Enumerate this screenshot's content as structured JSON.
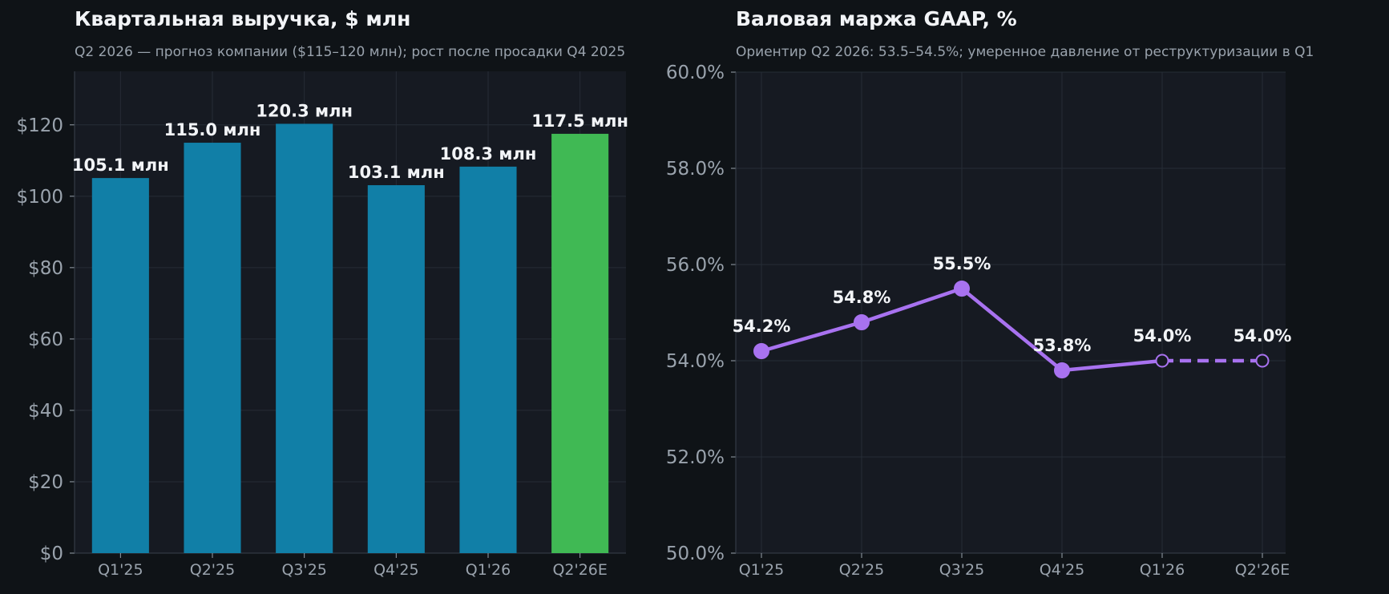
{
  "colors": {
    "background": "#0f1317",
    "plot_background": "#161a22",
    "grid": "#262c36",
    "bar": "#117fa7",
    "bar_highlight": "#40b954",
    "line": "#a872f0",
    "text": "#f2f4f7",
    "muted_text": "#9aa3ad"
  },
  "chart_data": [
    {
      "type": "bar",
      "title": "Квартальная выручка, $ млн",
      "subtitle": "Q2 2026 — прогноз компании ($115–120 млн); рост после просадки Q4 2025",
      "categories": [
        "Q1'25",
        "Q2'25",
        "Q3'25",
        "Q4'25",
        "Q1'26",
        "Q2'26E"
      ],
      "values": [
        105.1,
        115.0,
        120.3,
        103.1,
        108.3,
        117.5
      ],
      "data_labels": [
        "105.1 млн",
        "115.0 млн",
        "120.3 млн",
        "103.1 млн",
        "108.3 млн",
        "117.5 млн"
      ],
      "highlighted": [
        false,
        false,
        false,
        false,
        false,
        true
      ],
      "ylim": [
        0,
        135
      ],
      "yticks": [
        0,
        20,
        40,
        60,
        80,
        100,
        120
      ],
      "ytick_labels": [
        "$0",
        "$20",
        "$40",
        "$60",
        "$80",
        "$100",
        "$120"
      ],
      "grid": true
    },
    {
      "type": "line",
      "title": "Валовая маржа GAAP, %",
      "subtitle": "Ориентир Q2 2026: 53.5–54.5%; умеренное давление от реструктуризации в Q1",
      "categories": [
        "Q1'25",
        "Q2'25",
        "Q3'25",
        "Q4'25",
        "Q1'26",
        "Q2'26E"
      ],
      "values": [
        54.2,
        54.8,
        55.5,
        53.8,
        54.0,
        54.0
      ],
      "data_labels": [
        "54.2%",
        "54.8%",
        "55.5%",
        "53.8%",
        "54.0%",
        "54.0%"
      ],
      "hollow_markers": [
        false,
        false,
        false,
        false,
        true,
        true
      ],
      "dashed_from_index": 4,
      "ylim": [
        50,
        60
      ],
      "yticks": [
        50,
        52,
        54,
        56,
        58,
        60
      ],
      "ytick_labels": [
        "50.0%",
        "52.0%",
        "54.0%",
        "56.0%",
        "58.0%",
        "60.0%"
      ],
      "grid": true
    }
  ]
}
